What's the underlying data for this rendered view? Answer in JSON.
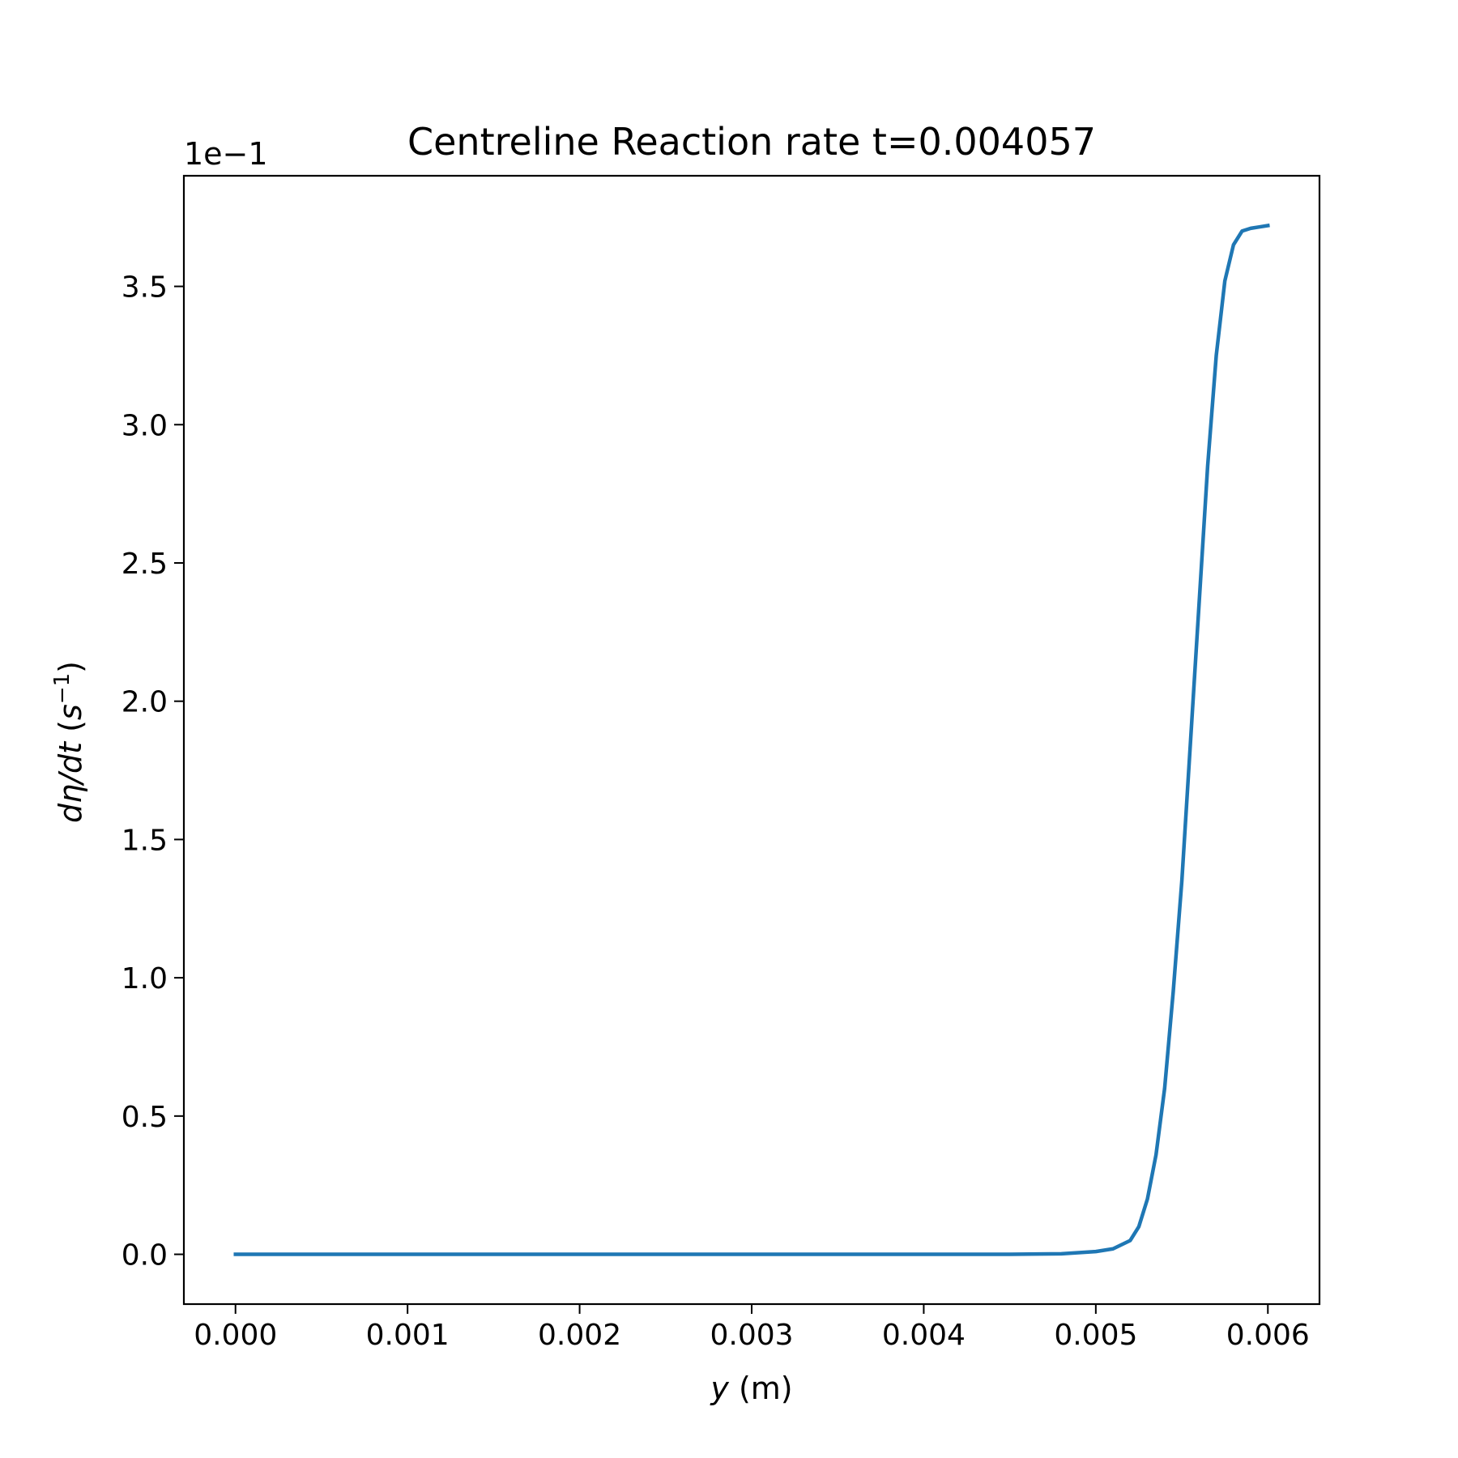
{
  "chart_data": {
    "type": "line",
    "title": "Centreline Reaction rate t=0.004057",
    "xlabel": {
      "var": "y",
      "unit": " (m)"
    },
    "ylabel": {
      "var": "dη/dt",
      "unit_open": " (",
      "unit_base": "s",
      "unit_exp": "−1",
      "unit_close": ")"
    },
    "y_offset_label": "1e−1",
    "xlim": [
      -0.0003,
      0.0063
    ],
    "ylim": [
      -0.18,
      3.9
    ],
    "x_ticks": [
      0.0,
      0.001,
      0.002,
      0.003,
      0.004,
      0.005,
      0.006
    ],
    "x_tick_labels": [
      "0.000",
      "0.001",
      "0.002",
      "0.003",
      "0.004",
      "0.005",
      "0.006"
    ],
    "y_ticks": [
      0.0,
      0.5,
      1.0,
      1.5,
      2.0,
      2.5,
      3.0,
      3.5
    ],
    "y_tick_labels": [
      "0.0",
      "0.5",
      "1.0",
      "1.5",
      "2.0",
      "2.5",
      "3.0",
      "3.5"
    ],
    "grid": false,
    "series": [
      {
        "color": "#1f77b4",
        "x": [
          0.0,
          0.001,
          0.002,
          0.003,
          0.004,
          0.0045,
          0.0048,
          0.005,
          0.0051,
          0.0052,
          0.00525,
          0.0053,
          0.00535,
          0.0054,
          0.00545,
          0.0055,
          0.00555,
          0.0056,
          0.00565,
          0.0057,
          0.00575,
          0.0058,
          0.00585,
          0.0059,
          0.00595,
          0.006
        ],
        "y": [
          0.0,
          0.0,
          0.0,
          0.0,
          0.0,
          0.0,
          0.002,
          0.01,
          0.02,
          0.05,
          0.1,
          0.2,
          0.36,
          0.6,
          0.95,
          1.35,
          1.85,
          2.35,
          2.85,
          3.25,
          3.52,
          3.65,
          3.7,
          3.71,
          3.715,
          3.72
        ]
      }
    ]
  }
}
